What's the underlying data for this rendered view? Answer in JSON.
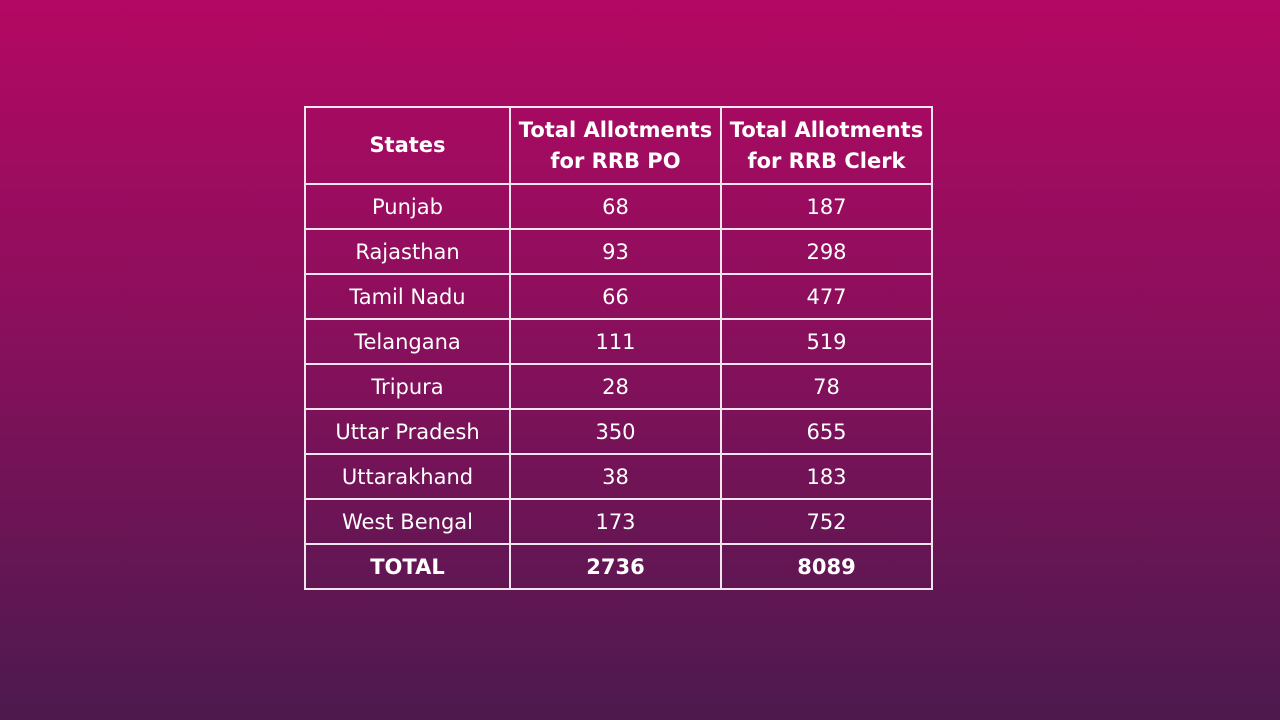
{
  "table": {
    "header": [
      "States",
      "Total Allotments for RRB PO",
      "Total Allotments for RRB Clerk"
    ],
    "rows": [
      [
        "Punjab",
        "68",
        "187"
      ],
      [
        "Rajasthan",
        "93",
        "298"
      ],
      [
        "Tamil Nadu",
        "66",
        "477"
      ],
      [
        "Telangana",
        "111",
        "519"
      ],
      [
        "Tripura",
        "28",
        "78"
      ],
      [
        "Uttar Pradesh",
        "350",
        "655"
      ],
      [
        "Uttarakhand",
        "38",
        "183"
      ],
      [
        "West Bengal",
        "173",
        "752"
      ]
    ],
    "total": [
      "TOTAL",
      "2736",
      "8089"
    ]
  }
}
